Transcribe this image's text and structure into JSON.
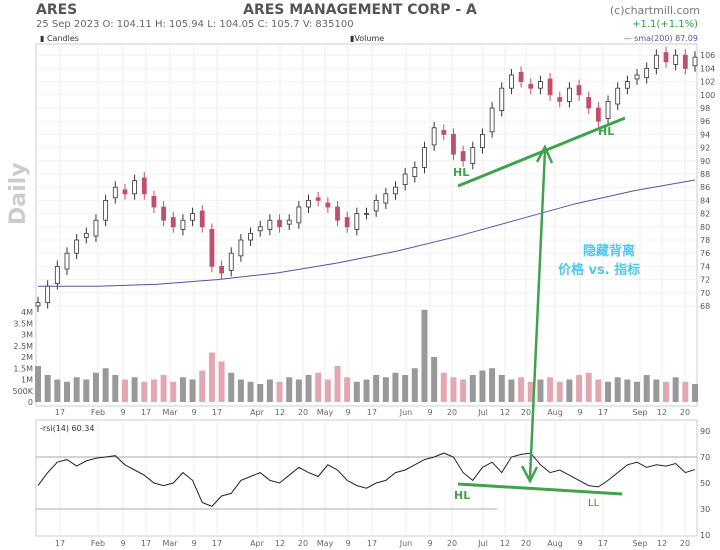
{
  "header": {
    "symbol": "ARES",
    "company": "ARES MANAGEMENT CORP - A",
    "copyright": "(c)chartmill.com",
    "ohlc": "25 Sep 2023   O: 104.11  H: 105.94  L: 104.05  C: 105.7   V: 835100",
    "change": "+1.1(+1.1%)",
    "period": "Daily"
  },
  "legend": {
    "candles": "Candles",
    "volume": "Volume",
    "sma": "— sma(200) 87.09",
    "rsi": "-rsi(14) 60.34"
  },
  "colors": {
    "up": "#333333",
    "down": "#c0506a",
    "sma": "#5a4f9e",
    "annotation": "#3fa34d",
    "ll": "#6a5acd",
    "note": "#4fc8ee",
    "vol_up": "#999999",
    "vol_down": "#e3a7b2"
  },
  "annotations": {
    "hl_price_1": "HL",
    "hl_price_2": "HL",
    "hl_rsi": "HL",
    "ll_rsi": "LL",
    "note_1": "隐藏背离",
    "note_2": "价格 vs. 指标"
  },
  "chart_data": {
    "type": "candlestick",
    "title": "ARES MANAGEMENT CORP - A",
    "price_axis": {
      "ticks": [
        68,
        70,
        72,
        74,
        76,
        78,
        80,
        82,
        84,
        86,
        88,
        90,
        92,
        94,
        96,
        98,
        100,
        102,
        104,
        106
      ],
      "range": [
        67,
        107
      ]
    },
    "volume_axis": {
      "ticks": [
        "0",
        "500K",
        "1M",
        "1.5M",
        "2M",
        "2.5M",
        "3M",
        "3.5M",
        "4M"
      ],
      "range": [
        0,
        4.2
      ]
    },
    "rsi_axis": {
      "ticks": [
        10,
        30,
        50,
        70,
        90
      ],
      "levels": [
        30,
        70
      ],
      "range": [
        5,
        95
      ]
    },
    "x_ticks": [
      "17",
      "Feb",
      "9",
      "17",
      "Mar",
      "9",
      "17",
      "Apr",
      "12",
      "20",
      "May",
      "9",
      "17",
      "Jun",
      "9",
      "20",
      "Jul",
      "12",
      "20",
      "Aug",
      "9",
      "17",
      "Sep",
      "12",
      "20"
    ],
    "close": [
      68.5,
      71,
      74,
      76,
      78,
      79,
      81,
      84,
      86,
      85,
      87,
      85,
      83,
      81,
      80,
      81,
      82,
      80,
      74,
      73,
      76,
      78,
      79,
      80,
      81,
      80,
      81,
      83,
      84,
      84,
      83,
      81,
      80,
      82,
      82,
      84,
      85,
      86,
      88,
      89,
      92,
      95,
      94,
      91,
      90,
      92,
      94,
      98,
      101,
      103,
      102,
      101,
      102,
      100,
      99,
      101,
      100,
      98,
      96,
      99,
      101,
      102,
      103,
      104,
      106,
      105,
      106,
      104,
      105.7
    ],
    "sma200": [
      71,
      71,
      71.3,
      72,
      73,
      74.5,
      76.3,
      78.5,
      81,
      83.5,
      85.5,
      87.09
    ],
    "volume_m": [
      1.6,
      1.2,
      1.0,
      0.9,
      1.1,
      1.0,
      1.3,
      1.5,
      1.2,
      1.0,
      1.1,
      0.9,
      1.0,
      1.2,
      0.9,
      1.1,
      1.0,
      1.4,
      2.2,
      1.8,
      1.3,
      1.0,
      0.9,
      0.8,
      1.0,
      0.9,
      1.1,
      1.0,
      1.2,
      1.3,
      1.0,
      1.6,
      1.1,
      0.9,
      1.0,
      1.2,
      1.1,
      1.3,
      1.2,
      1.5,
      4.1,
      2.0,
      1.3,
      1.1,
      1.0,
      1.2,
      1.4,
      1.5,
      1.2,
      1.0,
      1.1,
      0.9,
      1.0,
      1.1,
      0.9,
      1.0,
      1.2,
      1.3,
      1.0,
      0.9,
      1.1,
      1.0,
      0.9,
      1.2,
      1.0,
      0.9,
      1.1,
      0.9,
      0.8
    ],
    "rsi14": [
      48,
      58,
      66,
      68,
      63,
      67,
      69,
      70,
      71,
      64,
      60,
      56,
      50,
      48,
      50,
      58,
      52,
      35,
      32,
      40,
      42,
      52,
      55,
      58,
      52,
      50,
      56,
      62,
      58,
      55,
      64,
      60,
      52,
      48,
      46,
      50,
      52,
      58,
      60,
      64,
      68,
      70,
      73,
      70,
      58,
      52,
      62,
      66,
      58,
      70,
      72,
      73,
      64,
      58,
      60,
      56,
      52,
      48,
      47,
      52,
      58,
      64,
      66,
      62,
      64,
      63,
      65,
      58,
      60.34
    ]
  }
}
